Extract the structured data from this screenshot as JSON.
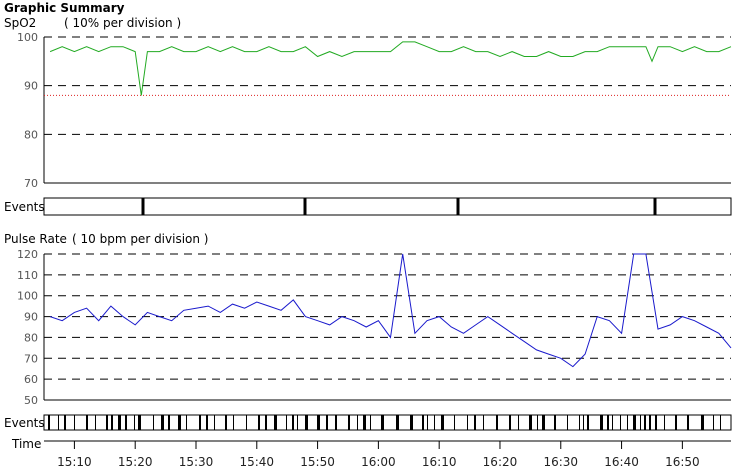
{
  "header": {
    "title": "Graphic Summary",
    "spo2_label": "SpO2",
    "spo2_scale": "( 10% per division )",
    "events_label": "Events",
    "pulse_label": "Pulse Rate",
    "pulse_scale": "( 10 bpm per division )",
    "events_label_2": "Events",
    "time_label": "Time"
  },
  "colors": {
    "spo2": "#22aa22",
    "pulse": "#1a1acc",
    "threshold": "#dd2222",
    "grid": "#000000",
    "frame": "#000000"
  },
  "chart_data": [
    {
      "type": "line",
      "title": "SpO2",
      "ylim": [
        70,
        100
      ],
      "yticks": [
        70,
        80,
        90,
        100
      ],
      "threshold": 88,
      "x": [
        "15:06",
        "15:08",
        "15:10",
        "15:12",
        "15:14",
        "15:16",
        "15:18",
        "15:20",
        "15:21",
        "15:22",
        "15:24",
        "15:26",
        "15:28",
        "15:30",
        "15:32",
        "15:34",
        "15:36",
        "15:38",
        "15:40",
        "15:42",
        "15:44",
        "15:46",
        "15:48",
        "15:50",
        "15:52",
        "15:54",
        "15:56",
        "15:58",
        "16:00",
        "16:02",
        "16:04",
        "16:06",
        "16:08",
        "16:10",
        "16:12",
        "16:14",
        "16:16",
        "16:18",
        "16:20",
        "16:22",
        "16:24",
        "16:26",
        "16:28",
        "16:30",
        "16:32",
        "16:34",
        "16:36",
        "16:38",
        "16:40",
        "16:42",
        "16:44",
        "16:45",
        "16:46",
        "16:48",
        "16:50",
        "16:52",
        "16:54",
        "16:56",
        "16:58"
      ],
      "series": [
        {
          "values": [
            97,
            98,
            97,
            98,
            97,
            98,
            98,
            97,
            88,
            97,
            97,
            98,
            97,
            97,
            98,
            97,
            98,
            97,
            97,
            98,
            97,
            97,
            98,
            96,
            97,
            96,
            97,
            97,
            97,
            97,
            99,
            99,
            98,
            97,
            97,
            98,
            97,
            97,
            96,
            97,
            96,
            96,
            97,
            96,
            96,
            97,
            97,
            98,
            98,
            98,
            98,
            95,
            98,
            98,
            97,
            98,
            97,
            97,
            98
          ]
        }
      ]
    },
    {
      "type": "line",
      "title": "Pulse Rate",
      "ylim": [
        50,
        120
      ],
      "yticks": [
        50,
        60,
        70,
        80,
        90,
        100,
        110,
        120
      ],
      "xticks": [
        "15:10",
        "15:20",
        "15:30",
        "15:40",
        "15:50",
        "16:00",
        "16:10",
        "16:20",
        "16:30",
        "16:40",
        "16:50"
      ],
      "xlim": [
        "15:05",
        "16:58"
      ],
      "x": [
        "15:06",
        "15:08",
        "15:10",
        "15:12",
        "15:14",
        "15:16",
        "15:18",
        "15:20",
        "15:22",
        "15:24",
        "15:26",
        "15:28",
        "15:30",
        "15:32",
        "15:34",
        "15:36",
        "15:38",
        "15:40",
        "15:42",
        "15:44",
        "15:46",
        "15:48",
        "15:50",
        "15:52",
        "15:54",
        "15:56",
        "15:58",
        "16:00",
        "16:02",
        "16:04",
        "16:06",
        "16:08",
        "16:10",
        "16:12",
        "16:14",
        "16:16",
        "16:18",
        "16:20",
        "16:22",
        "16:24",
        "16:26",
        "16:28",
        "16:30",
        "16:32",
        "16:34",
        "16:36",
        "16:38",
        "16:40",
        "16:42",
        "16:44",
        "16:46",
        "16:48",
        "16:50",
        "16:52",
        "16:54",
        "16:56",
        "16:58"
      ],
      "series": [
        {
          "values": [
            90,
            88,
            92,
            94,
            88,
            95,
            90,
            86,
            92,
            90,
            88,
            93,
            94,
            95,
            92,
            96,
            94,
            97,
            95,
            93,
            98,
            90,
            88,
            86,
            90,
            88,
            85,
            88,
            80,
            120,
            82,
            88,
            90,
            85,
            82,
            86,
            90,
            86,
            82,
            78,
            74,
            72,
            70,
            66,
            72,
            90,
            88,
            82,
            120,
            120,
            84,
            86,
            90,
            88,
            85,
            82,
            75
          ]
        }
      ]
    }
  ]
}
